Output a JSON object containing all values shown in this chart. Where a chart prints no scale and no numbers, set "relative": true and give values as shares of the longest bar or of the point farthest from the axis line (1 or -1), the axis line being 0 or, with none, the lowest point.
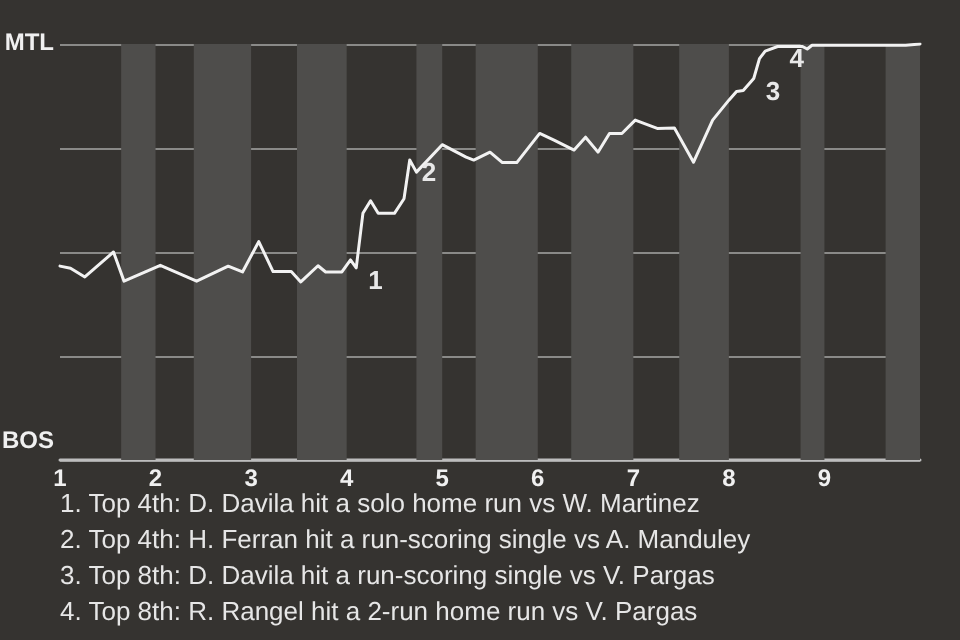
{
  "chart_data": {
    "type": "line",
    "relative": true,
    "x": [
      1.0,
      1.11,
      1.26,
      1.56,
      1.67,
      2.05,
      2.43,
      2.76,
      2.91,
      3.08,
      3.23,
      3.42,
      3.52,
      3.7,
      3.78,
      3.95,
      4.04,
      4.1,
      4.17,
      4.25,
      4.33,
      4.5,
      4.6,
      4.66,
      4.73,
      5.0,
      5.25,
      5.33,
      5.5,
      5.63,
      5.78,
      6.02,
      6.17,
      6.38,
      6.5,
      6.63,
      6.75,
      6.88,
      7.02,
      7.25,
      7.43,
      7.63,
      7.83,
      8.0,
      8.08,
      8.15,
      8.26,
      8.32,
      8.38,
      8.51,
      8.77,
      8.82,
      8.87,
      9.85,
      10.0
    ],
    "series": [
      {
        "color": "#f2f2f2",
        "values": [
          0.466,
          0.461,
          0.44,
          0.5,
          0.43,
          0.468,
          0.43,
          0.466,
          0.452,
          0.525,
          0.453,
          0.453,
          0.428,
          0.467,
          0.452,
          0.452,
          0.481,
          0.462,
          0.593,
          0.623,
          0.593,
          0.593,
          0.628,
          0.721,
          0.692,
          0.758,
          0.728,
          0.721,
          0.74,
          0.715,
          0.715,
          0.785,
          0.769,
          0.745,
          0.776,
          0.74,
          0.785,
          0.785,
          0.817,
          0.797,
          0.798,
          0.716,
          0.817,
          0.865,
          0.886,
          0.888,
          0.917,
          0.965,
          0.983,
          0.994,
          0.994,
          0.988,
          0.997,
          0.997,
          1.0
        ]
      }
    ],
    "xlim": [
      1,
      10
    ],
    "xticks": [
      1,
      2,
      3,
      4,
      5,
      6,
      7,
      8,
      9
    ],
    "grid": "y",
    "marker": "none",
    "line_style": "solid",
    "bands": [
      {
        "axis": "x",
        "from": 1.64,
        "to": 2,
        "color": "#4e4d4b"
      },
      {
        "axis": "x",
        "from": 2.4,
        "to": 3,
        "color": "#4e4d4b"
      },
      {
        "axis": "x",
        "from": 3.48,
        "to": 4,
        "color": "#4e4d4b"
      },
      {
        "axis": "x",
        "from": 4.73,
        "to": 5,
        "color": "#4e4d4b"
      },
      {
        "axis": "x",
        "from": 5.35,
        "to": 6,
        "color": "#4e4d4b"
      },
      {
        "axis": "x",
        "from": 6.35,
        "to": 7,
        "color": "#4e4d4b"
      },
      {
        "axis": "x",
        "from": 7.48,
        "to": 8,
        "color": "#4e4d4b"
      },
      {
        "axis": "x",
        "from": 8.75,
        "to": 9,
        "color": "#4e4d4b"
      },
      {
        "axis": "x",
        "from": 9.64,
        "to": 10,
        "color": "#4e4d4b"
      }
    ],
    "annotations": [
      "MTL",
      "BOS",
      {
        "text": "1",
        "x": 4.1,
        "y": 0.462
      },
      {
        "text": "2",
        "x": 4.66,
        "y": 0.721
      },
      {
        "text": "3",
        "x": 8.26,
        "y": 0.917
      },
      {
        "text": "4",
        "x": 8.51,
        "y": 0.994
      },
      "1. Top 4th: D. Davila hit a solo home run vs W. Martinez",
      "2. Top 4th: H. Ferran hit a run-scoring single vs A. Manduley",
      "3. Top 8th: D. Davila hit a run-scoring single vs V. Pargas",
      "4. Top 8th: R. Rangel hit a 2-run home run vs V. Pargas"
    ]
  }
}
